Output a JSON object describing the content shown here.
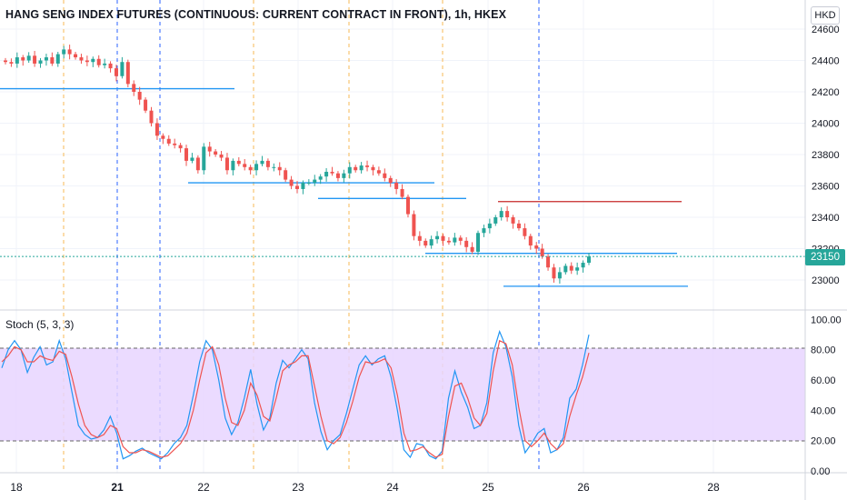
{
  "header": {
    "title": "HANG SENG INDEX FUTURES (CONTINUOUS: CURRENT CONTRACT IN FRONT), 1h, HKEX",
    "currency": "HKD",
    "last_price": "23150"
  },
  "indicator": {
    "label": "Stoch (5, 3, 3)"
  },
  "colors": {
    "up": "#26a69a",
    "down": "#ef5350",
    "line_blue": "#2196f3",
    "line_red": "#c62828",
    "stoch_k": "#2196f3",
    "stoch_d": "#ef5350",
    "stoch_band": "#e8d5ff",
    "orange_vline": "#f7b955",
    "blue_vline": "#2962ff"
  },
  "chart_data": [
    {
      "type": "candlestick",
      "title": "HANG SENG INDEX FUTURES (CONTINUOUS: CURRENT CONTRACT IN FRONT), 1h, HKEX",
      "y_ticks": [
        23000,
        23200,
        23400,
        23600,
        23800,
        24000,
        24200,
        24400,
        24600
      ],
      "ylim": [
        22880,
        24660
      ],
      "x_ticks": [
        "18",
        "21",
        "22",
        "23",
        "24",
        "25",
        "26",
        "28"
      ],
      "x_tick_bold": [
        "21"
      ],
      "last_price": 23150,
      "series_close": [
        24390,
        24380,
        24420,
        24400,
        24430,
        24380,
        24400,
        24420,
        24380,
        24440,
        24470,
        24440,
        24420,
        24400,
        24390,
        24410,
        24370,
        24380,
        24350,
        24300,
        24390,
        24250,
        24200,
        24150,
        24080,
        24000,
        23920,
        23900,
        23870,
        23860,
        23840,
        23760,
        23780,
        23700,
        23850,
        23820,
        23800,
        23780,
        23700,
        23760,
        23740,
        23720,
        23700,
        23740,
        23760,
        23720,
        23720,
        23700,
        23640,
        23600,
        23580,
        23620,
        23620,
        23640,
        23660,
        23690,
        23680,
        23650,
        23680,
        23720,
        23700,
        23730,
        23720,
        23700,
        23680,
        23650,
        23620,
        23580,
        23530,
        23420,
        23280,
        23250,
        23220,
        23260,
        23280,
        23250,
        23240,
        23270,
        23250,
        23210,
        23180,
        23300,
        23330,
        23360,
        23400,
        23440,
        23400,
        23360,
        23330,
        23280,
        23220,
        23200,
        23150,
        23080,
        23010,
        23050,
        23090,
        23060,
        23080,
        23110,
        23150
      ],
      "support_resistance_lines": [
        {
          "price": 24220,
          "color": "blue"
        },
        {
          "price": 23620,
          "color": "blue"
        },
        {
          "price": 23520,
          "color": "blue"
        },
        {
          "price": 23500,
          "color": "red"
        },
        {
          "price": 23170,
          "color": "blue"
        },
        {
          "price": 22960,
          "color": "blue"
        }
      ]
    },
    {
      "type": "line",
      "title": "Stoch (5, 3, 3)",
      "y_ticks": [
        0,
        20,
        40,
        60,
        80,
        100
      ],
      "ylim": [
        0,
        100
      ],
      "bands": [
        20,
        80
      ],
      "series": [
        {
          "name": "K",
          "values": [
            68,
            80,
            86,
            80,
            65,
            75,
            82,
            70,
            72,
            86,
            74,
            52,
            30,
            24,
            21,
            22,
            27,
            36,
            25,
            8,
            10,
            13,
            15,
            12,
            10,
            8,
            12,
            18,
            22,
            30,
            50,
            72,
            86,
            80,
            60,
            35,
            24,
            32,
            48,
            67,
            44,
            27,
            35,
            58,
            73,
            68,
            74,
            80,
            74,
            45,
            26,
            14,
            20,
            24,
            38,
            54,
            70,
            76,
            70,
            74,
            76,
            62,
            40,
            14,
            9,
            18,
            17,
            10,
            8,
            13,
            48,
            66,
            52,
            42,
            28,
            30,
            45,
            78,
            92,
            82,
            62,
            30,
            12,
            18,
            25,
            28,
            12,
            14,
            22,
            48,
            54,
            70,
            90
          ]
        },
        {
          "name": "D",
          "values": [
            72,
            76,
            82,
            80,
            72,
            72,
            76,
            74,
            73,
            79,
            77,
            62,
            44,
            30,
            24,
            22,
            24,
            30,
            28,
            16,
            12,
            12,
            14,
            13,
            11,
            9,
            10,
            14,
            18,
            25,
            40,
            60,
            78,
            82,
            70,
            48,
            32,
            30,
            40,
            58,
            50,
            36,
            33,
            48,
            66,
            70,
            72,
            76,
            76,
            56,
            36,
            20,
            18,
            22,
            32,
            46,
            62,
            72,
            71,
            72,
            74,
            68,
            50,
            25,
            13,
            14,
            16,
            12,
            9,
            11,
            36,
            56,
            58,
            48,
            35,
            30,
            38,
            66,
            86,
            84,
            70,
            42,
            20,
            16,
            20,
            25,
            18,
            14,
            18,
            36,
            50,
            62,
            78
          ]
        }
      ]
    }
  ]
}
